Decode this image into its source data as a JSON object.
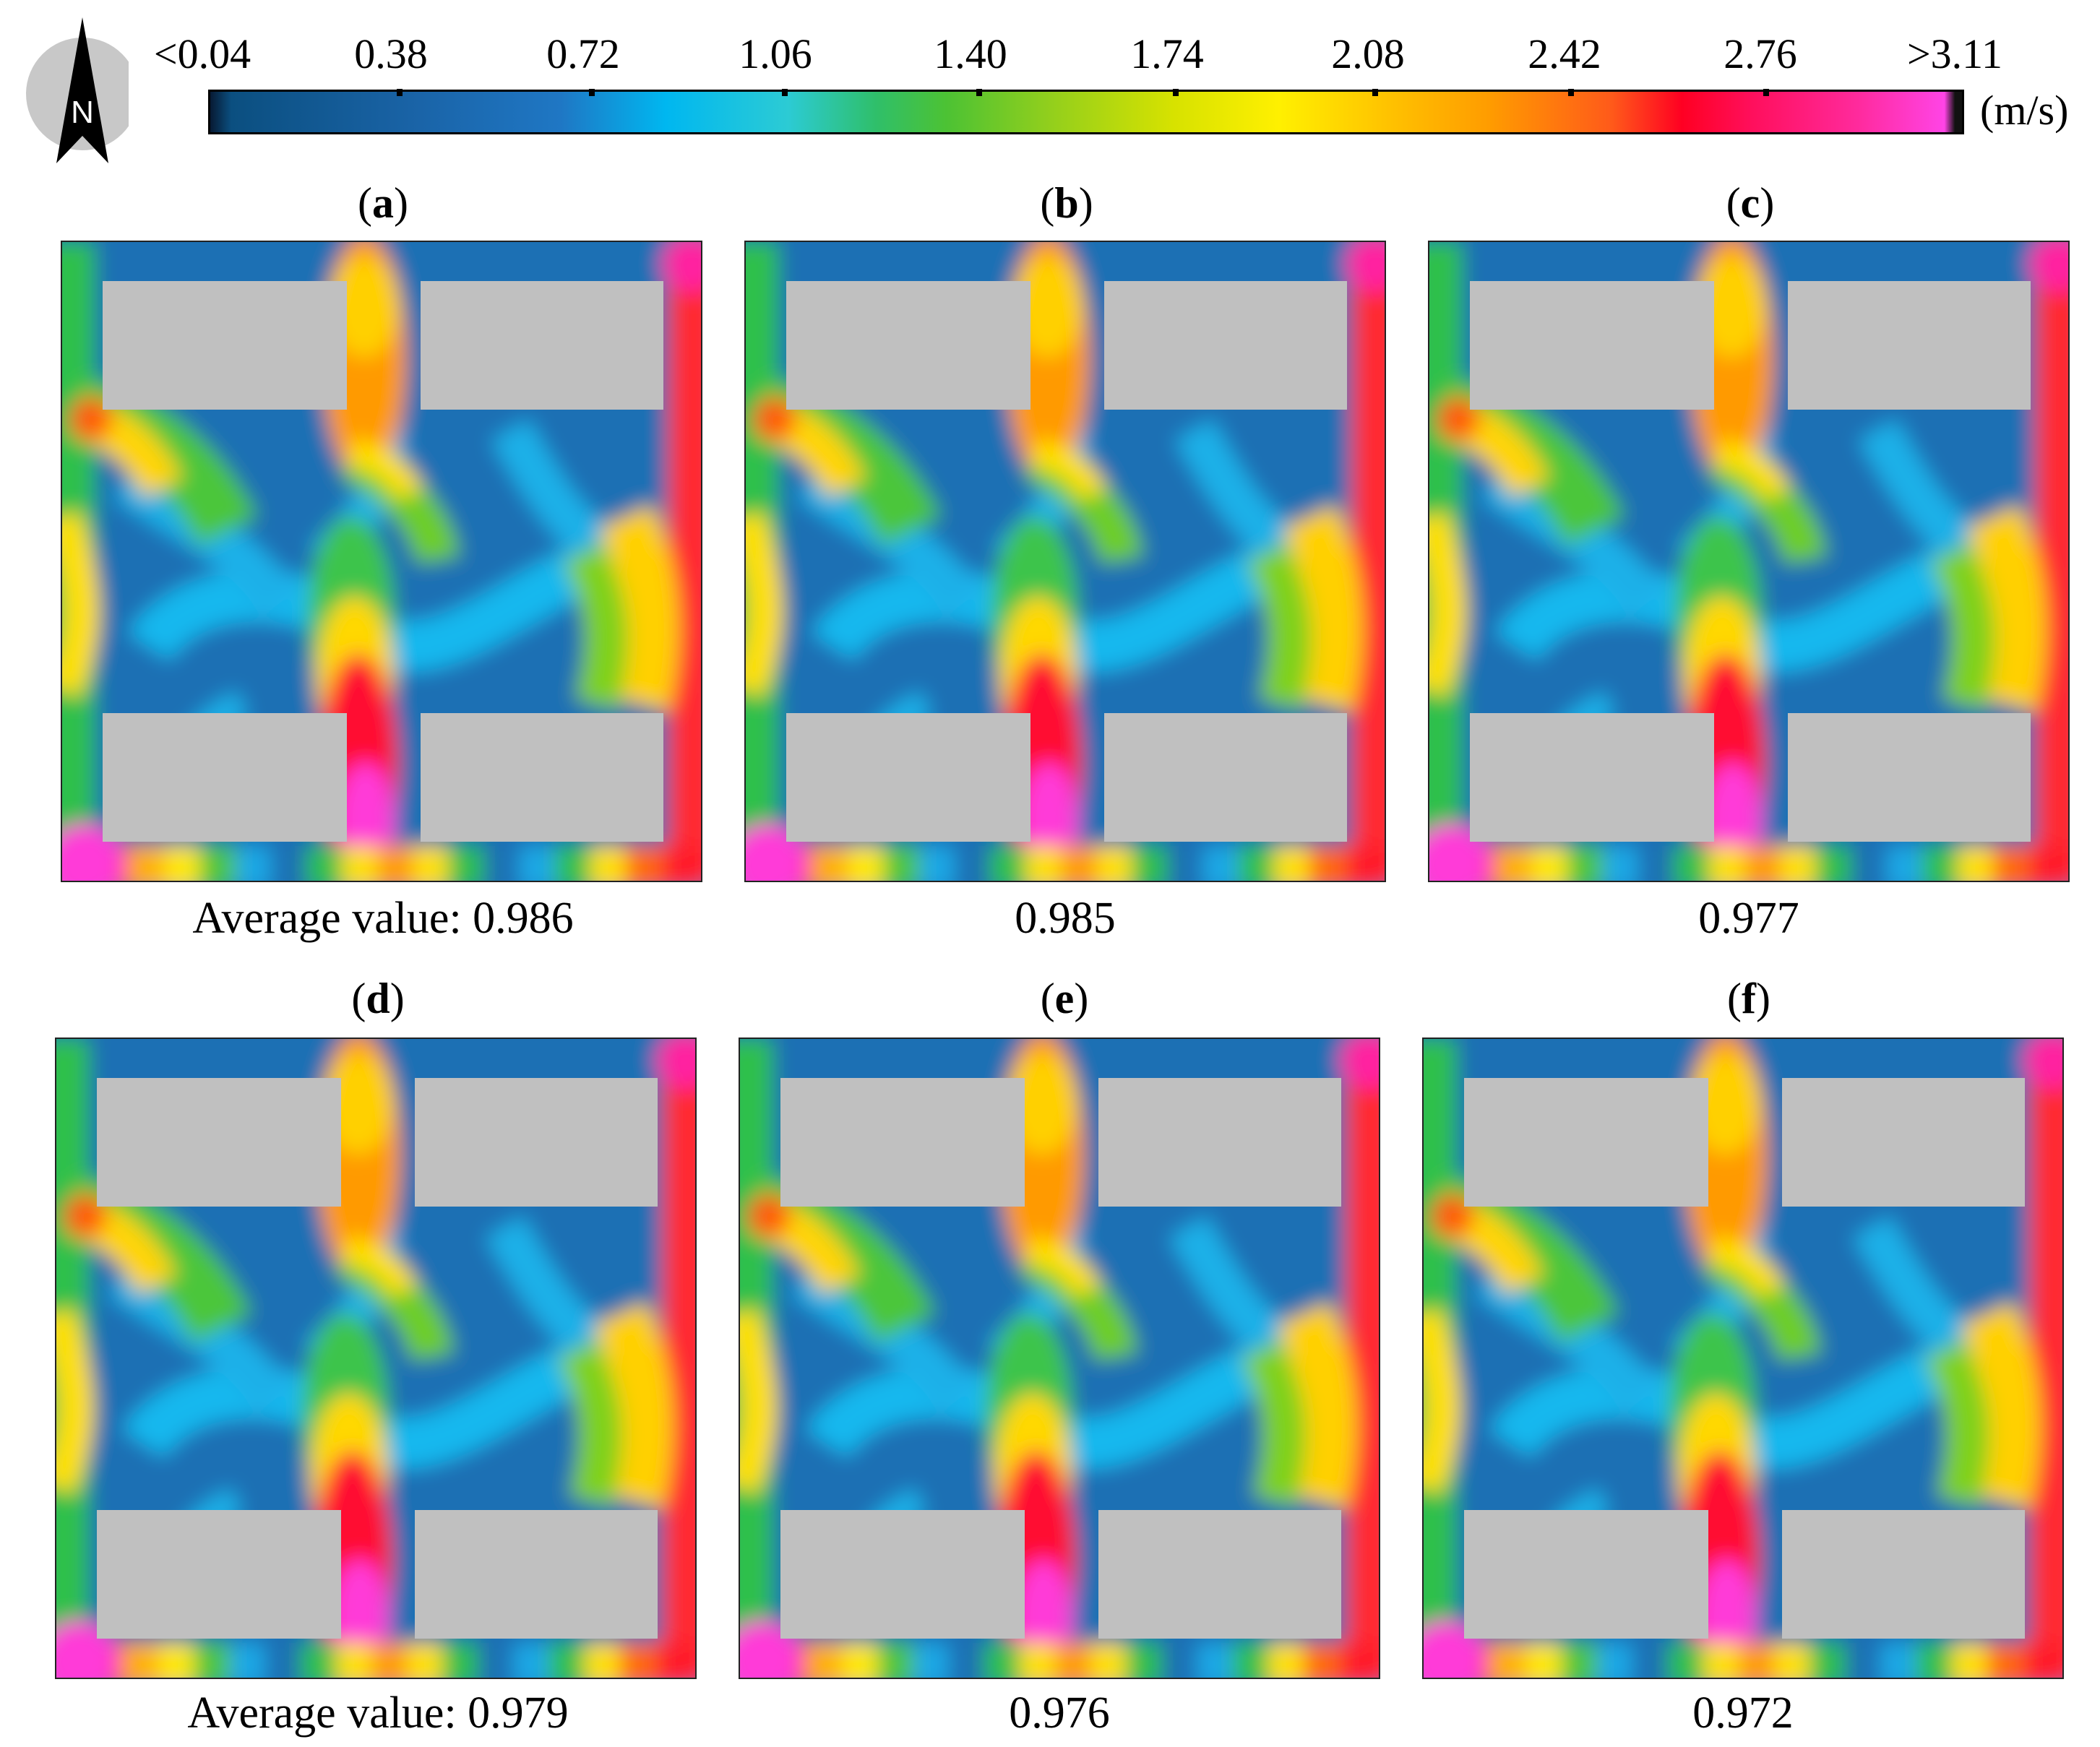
{
  "compass": {
    "letter": "N"
  },
  "colorbar": {
    "ticks": [
      "<0.04",
      "0.38",
      "0.72",
      "1.06",
      "1.40",
      "1.74",
      "2.08",
      "2.42",
      "2.76",
      ">3.11"
    ],
    "unit": "(m/s)"
  },
  "panels": [
    {
      "open": "(",
      "letter": "a",
      "close": ")",
      "caption": "Average value: 0.986"
    },
    {
      "open": "(",
      "letter": "b",
      "close": ")",
      "caption": "0.985"
    },
    {
      "open": "(",
      "letter": "c",
      "close": ")",
      "caption": "0.977"
    },
    {
      "open": "(",
      "letter": "d",
      "close": ")",
      "caption": "Average value: 0.979"
    },
    {
      "open": "(",
      "letter": "e",
      "close": ")",
      "caption": "0.976"
    },
    {
      "open": "(",
      "letter": "f",
      "close": ")",
      "caption": "0.972"
    }
  ]
}
